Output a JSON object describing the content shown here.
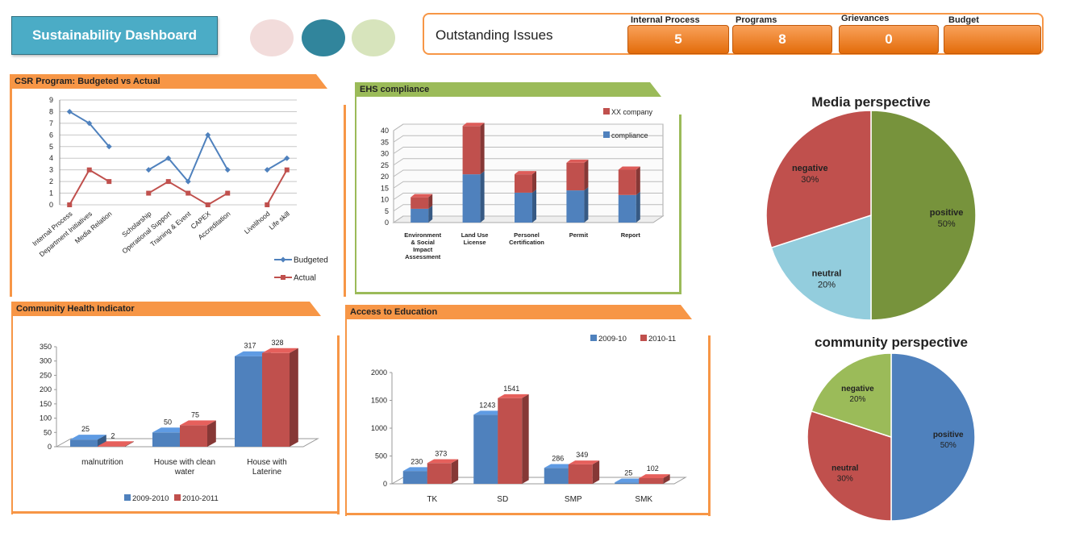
{
  "header": {
    "title": "Sustainability Dashboard",
    "dots": [
      "#f2dcdb",
      "#31859c",
      "#d7e4bc"
    ],
    "issues_label": "Outstanding Issues",
    "kpis": [
      {
        "label": "Internal Process",
        "value": "5"
      },
      {
        "label": "Programs",
        "value": "8"
      },
      {
        "label": "Grievances",
        "value": "0"
      },
      {
        "label": "Budget",
        "value": ""
      }
    ]
  },
  "chart_data": [
    {
      "id": "csr",
      "type": "line",
      "title": "CSR Program: Budgeted vs Actual",
      "categories": [
        "Internal Process",
        "Department Initiatives",
        "Media Relation",
        "",
        "Scholarship",
        "Operational Support",
        "Training & Event",
        "CAPEX",
        "Accreditation",
        "",
        "Livelihood",
        "Life skill"
      ],
      "series": [
        {
          "name": "Budgeted",
          "color": "#4f81bd",
          "values": [
            8,
            7,
            5,
            null,
            3,
            4,
            2,
            6,
            3,
            null,
            3,
            4
          ]
        },
        {
          "name": "Actual",
          "color": "#c0504d",
          "values": [
            0,
            3,
            2,
            null,
            1,
            2,
            1,
            0,
            1,
            null,
            0,
            3
          ]
        }
      ],
      "ylim": [
        0,
        9
      ],
      "yticks": [
        "0",
        "1",
        "2",
        "3",
        "4",
        "5",
        "6",
        "7",
        "8",
        "9"
      ],
      "grid": true,
      "legend": "bottom-right"
    },
    {
      "id": "ehs",
      "type": "bar",
      "stacked": true,
      "title": "EHS compliance",
      "categories": [
        "Environment & Social Impact Assessment",
        "Land Use License",
        "Personel Certification",
        "Permit",
        "Report"
      ],
      "series": [
        {
          "name": "compliance",
          "color": "#4f81bd",
          "values": [
            6,
            21,
            13,
            14,
            12
          ]
        },
        {
          "name": "XX company",
          "color": "#c0504d",
          "values": [
            5,
            21,
            8,
            12,
            11
          ]
        }
      ],
      "ylim": [
        0,
        40
      ],
      "yticks": [
        "0",
        "5",
        "10",
        "15",
        "20",
        "25",
        "30",
        "35",
        "40"
      ],
      "grid": true,
      "legend": "top-right"
    },
    {
      "id": "media",
      "type": "pie",
      "title": "Media perspective",
      "slices": [
        {
          "label": "positive",
          "pct_label": "50%",
          "value": 50,
          "color": "#77933c"
        },
        {
          "label": "neutral",
          "pct_label": "20%",
          "value": 20,
          "color": "#93cddd"
        },
        {
          "label": "negative",
          "pct_label": "30%",
          "value": 30,
          "color": "#c0504d"
        }
      ]
    },
    {
      "id": "health",
      "type": "bar",
      "title": "Community Health Indicator",
      "categories": [
        "malnutrition",
        "House with clean water",
        "House with Laterine"
      ],
      "series": [
        {
          "name": "2009-2010",
          "color": "#4f81bd",
          "values": [
            25,
            50,
            317
          ],
          "labels": [
            "25",
            "50",
            "317"
          ]
        },
        {
          "name": "2010-2011",
          "color": "#c0504d",
          "values": [
            2,
            75,
            328
          ],
          "labels": [
            "2",
            "75",
            "328"
          ]
        }
      ],
      "ylim": [
        0,
        350
      ],
      "yticks": [
        "0",
        "50",
        "100",
        "150",
        "200",
        "250",
        "300",
        "350"
      ],
      "grid": false,
      "legend": "bottom"
    },
    {
      "id": "edu",
      "type": "bar",
      "title": "Access to Education",
      "categories": [
        "TK",
        "SD",
        "SMP",
        "SMK"
      ],
      "series": [
        {
          "name": "2009-10",
          "color": "#4f81bd",
          "values": [
            230,
            1243,
            286,
            25
          ],
          "labels": [
            "230",
            "1243",
            "286",
            "25"
          ]
        },
        {
          "name": "2010-11",
          "color": "#c0504d",
          "values": [
            373,
            1541,
            349,
            102
          ],
          "labels": [
            "373",
            "1541",
            "349",
            "102"
          ]
        }
      ],
      "ylim": [
        0,
        2000
      ],
      "yticks": [
        "0",
        "500",
        "1000",
        "1500",
        "2000"
      ],
      "grid": false,
      "legend": "top-right"
    },
    {
      "id": "community",
      "type": "pie",
      "title": "community perspective",
      "slices": [
        {
          "label": "positive",
          "pct_label": "50%",
          "value": 50,
          "color": "#4f81bd"
        },
        {
          "label": "neutral",
          "pct_label": "30%",
          "value": 30,
          "color": "#c0504d"
        },
        {
          "label": "negative",
          "pct_label": "20%",
          "value": 20,
          "color": "#9bbb59"
        }
      ]
    }
  ]
}
